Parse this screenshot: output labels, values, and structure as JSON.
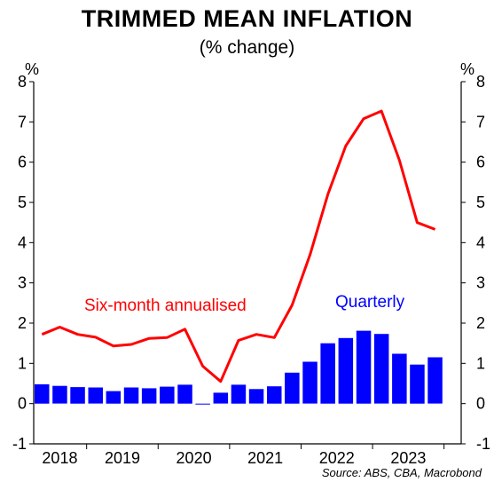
{
  "chart_data": {
    "type": "bar",
    "title": "TRIMMED MEAN INFLATION",
    "subtitle": "(% change)",
    "unit_left": "%",
    "unit_right": "%",
    "source": "Source: ABS, CBA, Macrobond",
    "ylim": [
      -1,
      8
    ],
    "yticks": [
      -1,
      0,
      1,
      2,
      3,
      4,
      5,
      6,
      7,
      8
    ],
    "ytick_labels": [
      "-1",
      "0",
      "1",
      "2",
      "3",
      "4",
      "5",
      "6",
      "7",
      "8"
    ],
    "grid": false,
    "xlabels": [
      "2018",
      "2019",
      "2020",
      "2021",
      "2022",
      "2023"
    ],
    "year_boundaries_q": [
      2.5,
      6.5,
      10.5,
      14.5,
      18.5,
      22.5
    ],
    "year_label_centers_q": [
      1,
      4.5,
      8.5,
      12.5,
      16.5,
      20.5
    ],
    "series": [
      {
        "name": "Quarterly",
        "type": "bar",
        "color": "#0000ff",
        "values": [
          0.48,
          0.44,
          0.41,
          0.4,
          0.31,
          0.4,
          0.38,
          0.42,
          0.47,
          0.0,
          0.27,
          0.47,
          0.36,
          0.43,
          0.77,
          1.04,
          1.5,
          1.63,
          1.81,
          1.73,
          1.24,
          0.97,
          1.15
        ]
      },
      {
        "name": "Six-month annualised",
        "type": "line",
        "color": "#ff0000",
        "values": [
          1.72,
          1.9,
          1.72,
          1.65,
          1.43,
          1.47,
          1.62,
          1.64,
          1.85,
          0.93,
          0.55,
          1.57,
          1.72,
          1.64,
          2.45,
          3.7,
          5.2,
          6.4,
          7.08,
          7.27,
          6.05,
          4.5,
          4.33
        ]
      }
    ],
    "annotations": [
      {
        "text": "Six-month annualised",
        "color": "#ff0000"
      },
      {
        "text": "Quarterly",
        "color": "#0000ff"
      }
    ]
  }
}
